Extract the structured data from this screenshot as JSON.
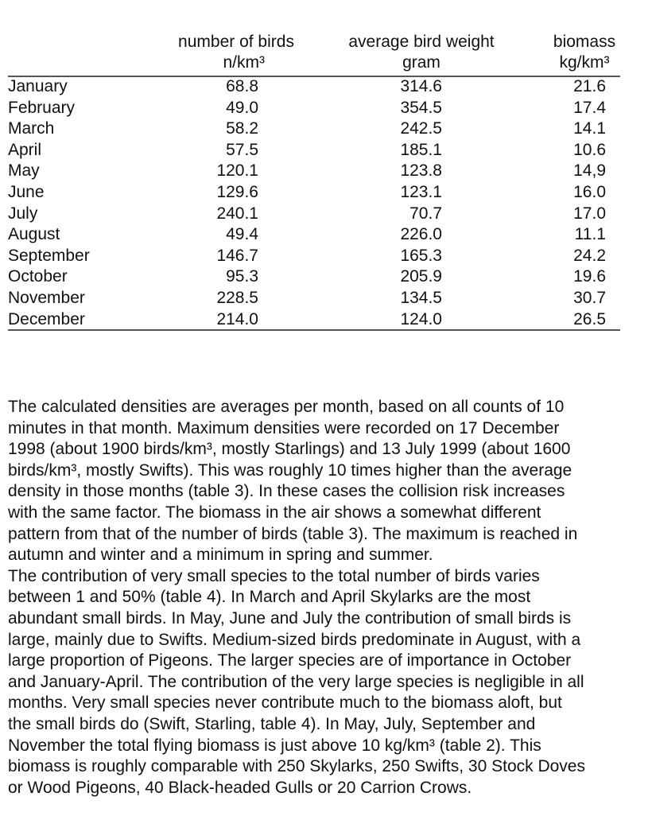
{
  "table": {
    "headers": [
      {
        "line1": "number of birds",
        "line2": "n/km³"
      },
      {
        "line1": "average bird weight",
        "line2": "gram"
      },
      {
        "line1": "biomass",
        "line2": "kg/km³"
      }
    ],
    "rows": [
      {
        "month": "January",
        "birds": "68.8",
        "weight": "314.6",
        "biomass": "21.6"
      },
      {
        "month": "February",
        "birds": "49.0",
        "weight": "354.5",
        "biomass": "17.4"
      },
      {
        "month": "March",
        "birds": "58.2",
        "weight": "242.5",
        "biomass": "14.1"
      },
      {
        "month": "April",
        "birds": "57.5",
        "weight": "185.1",
        "biomass": "10.6"
      },
      {
        "month": "May",
        "birds": "120.1",
        "weight": "123.8",
        "biomass": "14,9"
      },
      {
        "month": "June",
        "birds": "129.6",
        "weight": "123.1",
        "biomass": "16.0"
      },
      {
        "month": "July",
        "birds": "240.1",
        "weight": "70.7",
        "biomass": "17.0"
      },
      {
        "month": "August",
        "birds": "49.4",
        "weight": "226.0",
        "biomass": "11.1"
      },
      {
        "month": "September",
        "birds": "146.7",
        "weight": "165.3",
        "biomass": "24.2"
      },
      {
        "month": "October",
        "birds": "95.3",
        "weight": "205.9",
        "biomass": "19.6"
      },
      {
        "month": "November",
        "birds": "228.5",
        "weight": "134.5",
        "biomass": "30.7"
      },
      {
        "month": "December",
        "birds": "214.0",
        "weight": "124.0",
        "biomass": "26.5"
      }
    ]
  },
  "paragraph_lines": [
    "The calculated densities are averages per month, based on all counts of 10",
    "minutes in that month. Maximum densities were recorded on 17 December",
    "1998 (about 1900 birds/km³, mostly Starlings) and 13 July 1999 (about 1600",
    "birds/km³, mostly Swifts). This was roughly 10 times higher than the average",
    "density in those months (table 3). In these cases the collision risk increases",
    "with the same factor. The biomass in the air shows a somewhat different",
    "pattern from that of the number of birds (table 3). The maximum is reached in",
    "autumn and winter and a minimum in spring and summer.",
    "The contribution of very small species to the total number of birds varies",
    "between 1 and 50% (table 4). In March and April Skylarks are the most",
    "abundant small birds. In May, June and July the contribution of small birds is",
    "large, mainly due to Swifts. Medium-sized birds predominate in August, with a",
    "large proportion of Pigeons. The larger species are of importance in October",
    "and January-April. The contribution of the very large species is negligible in all",
    "months. Very small species never contribute much to the biomass aloft, but",
    "the small birds do (Swift, Starling, table 4). In May, July, September and",
    "November the total flying biomass is just above 10 kg/km³ (table 2). This",
    "biomass is roughly comparable with 250 Skylarks, 250 Swifts, 30 Stock Doves",
    "or Wood Pigeons, 40 Black-headed Gulls or 20 Carrion Crows."
  ]
}
